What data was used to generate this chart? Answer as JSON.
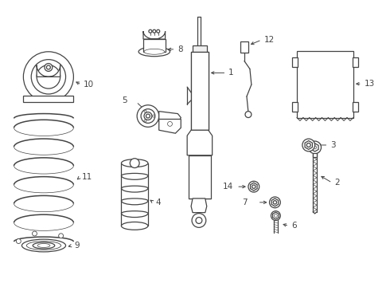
{
  "background_color": "#ffffff",
  "line_color": "#444444",
  "label_color": "#111111",
  "figsize": [
    4.9,
    3.6
  ],
  "dpi": 100
}
